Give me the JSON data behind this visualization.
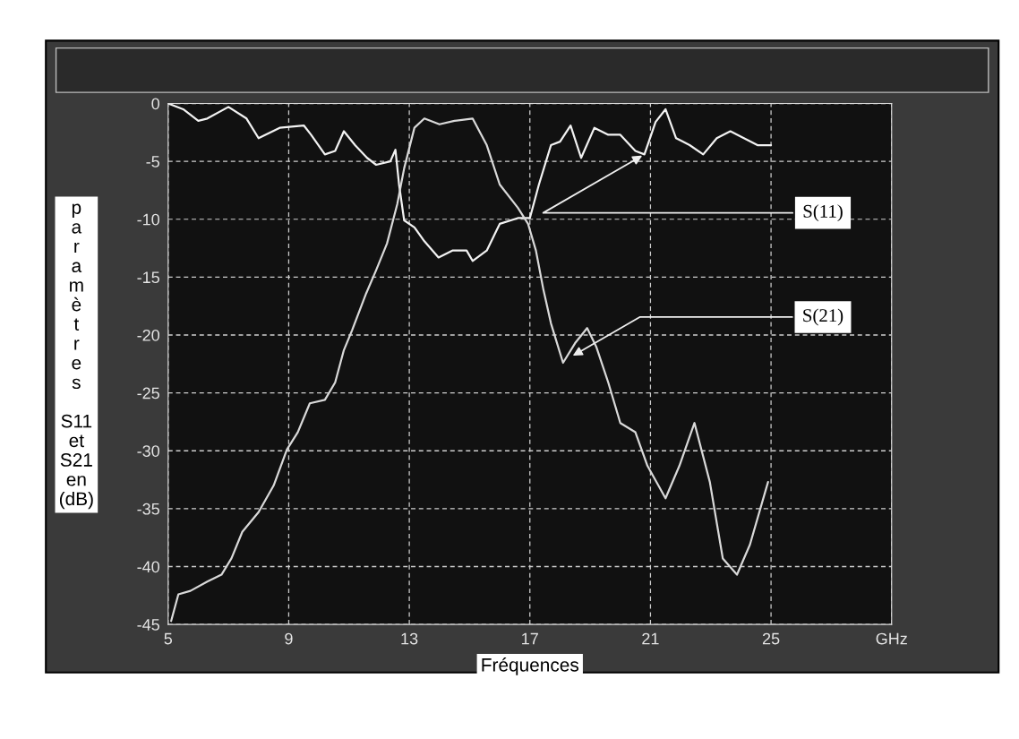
{
  "chart_data": {
    "type": "line",
    "xlabel": "Fréquences",
    "ylabel": "paramètres S11 et S21 en (dB)",
    "xlim": [
      5,
      29
    ],
    "ylim": [
      -45,
      0
    ],
    "xticks": [
      5,
      9,
      13,
      17,
      21,
      25,
      {
        "value": 29,
        "label": "GHz"
      }
    ],
    "yticks": [
      0,
      -5,
      -10,
      -15,
      -20,
      -25,
      -30,
      -35,
      -40,
      -45
    ],
    "grid": true,
    "line_style": "solid",
    "series": [
      {
        "color": "#f2f2f2",
        "x": [
          5.0,
          5.5,
          6.0,
          6.3,
          7.0,
          7.6,
          8.0,
          8.7,
          9.5,
          9.74,
          10.2,
          10.54,
          10.83,
          11.2,
          11.6,
          11.9,
          12.37,
          12.54,
          12.66,
          12.83,
          13.17,
          13.5,
          13.97,
          14.43,
          14.9,
          15.1,
          15.57,
          16.0,
          16.6,
          17.0,
          17.3,
          17.7,
          18.0,
          18.35,
          18.7,
          19.14,
          19.6,
          20.0,
          20.5,
          20.8,
          21.17,
          21.5,
          21.85,
          22.3,
          22.75,
          23.2,
          23.65,
          24.1,
          24.55,
          25.0
        ],
        "values": [
          0,
          -0.5,
          -1.5,
          -1.3,
          -0.3,
          -1.3,
          -3,
          -2.1,
          -1.9,
          -2.7,
          -4.4,
          -4.1,
          -2.4,
          -3.6,
          -4.7,
          -5.3,
          -5,
          -4,
          -7,
          -10.1,
          -10.7,
          -11.9,
          -13.3,
          -12.7,
          -12.7,
          -13.6,
          -12.7,
          -10.4,
          -9.9,
          -9.9,
          -7,
          -3.6,
          -3.3,
          -1.9,
          -4.7,
          -2.1,
          -2.7,
          -2.7,
          -4.1,
          -4.4,
          -1.6,
          -0.5,
          -3,
          -3.6,
          -4.4,
          -3,
          -2.4,
          -3,
          -3.6,
          -3.6
        ]
      },
      {
        "color": "#d9d9d9",
        "x": [
          5.1,
          5.34,
          5.74,
          6.3,
          6.77,
          7.1,
          7.46,
          8.0,
          8.5,
          8.94,
          9.3,
          9.7,
          10.2,
          10.54,
          10.83,
          11.1,
          11.57,
          11.9,
          12.26,
          12.6,
          12.83,
          13.17,
          13.5,
          14.0,
          14.5,
          15.1,
          15.57,
          16.0,
          16.6,
          16.94,
          17.2,
          17.45,
          17.7,
          18.1,
          18.5,
          18.9,
          19.2,
          19.6,
          20.0,
          20.5,
          20.9,
          21.5,
          21.96,
          22.46,
          22.97,
          23.4,
          23.87,
          24.3,
          24.9
        ],
        "values": [
          -44.7,
          -42.4,
          -42.1,
          -41.3,
          -40.7,
          -39.3,
          -37,
          -35.3,
          -33,
          -29.9,
          -28.4,
          -25.9,
          -25.6,
          -24.1,
          -21.3,
          -19.6,
          -16.4,
          -14.4,
          -12.1,
          -8.7,
          -5.6,
          -2.1,
          -1.3,
          -1.8,
          -1.5,
          -1.3,
          -3.6,
          -7,
          -9,
          -10.4,
          -12.7,
          -16.1,
          -19,
          -22.4,
          -20.7,
          -19.4,
          -21,
          -24.1,
          -27.6,
          -28.4,
          -31.3,
          -34.1,
          -31.3,
          -27.6,
          -32.7,
          -39.3,
          -40.7,
          -38.1,
          -32.7
        ]
      }
    ],
    "annotations": [
      {
        "text": "S(11)",
        "x": 20.8,
        "y": -4.4
      },
      {
        "text": "S(21)",
        "x": 18.35,
        "y": -21.9
      }
    ]
  }
}
